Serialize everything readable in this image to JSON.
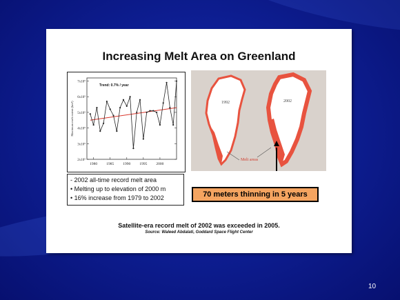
{
  "slide": {
    "title": "Increasing Melt Area on Greenland",
    "bullets": [
      "- 2002 all-time record melt area",
      "• Melting up to elevation of 2000 m",
      "• 16% increase from 1979 to 2002"
    ],
    "callout": "70 meters thinning in 5 years",
    "caption": "Satellite-era record melt of 2002 was exceeded in 2005.",
    "source": "Source: Waleed Abdalati, Goddard Space Flight Center",
    "page_number": "10"
  },
  "map": {
    "year_left": "1992",
    "year_right": "2002",
    "melt_label": "Melt areas",
    "melt_color": "#e8533f"
  },
  "chart_data": {
    "type": "line",
    "ylabel": "Maximum melt extent (km²)",
    "annotation": "Trend: 0.7% / year",
    "x_ticks": [
      "1980",
      "1985",
      "1990",
      "1995",
      "2000"
    ],
    "y_ticks": [
      "2x10⁵",
      "3x10⁵",
      "4x10⁵",
      "5x10⁵",
      "6x10⁵",
      "7x10⁵"
    ],
    "ylim": [
      2.0,
      7.2
    ],
    "xlim": [
      1978,
      2005
    ],
    "series": [
      {
        "x": [
          1979,
          1980,
          1981,
          1982,
          1983,
          1984,
          1985,
          1986,
          1987,
          1988,
          1989,
          1990,
          1991,
          1992,
          1993,
          1994,
          1995,
          1996,
          1997,
          1998,
          1999,
          2000,
          2001,
          2002,
          2003,
          2004,
          2005
        ],
        "values": [
          4.9,
          4.2,
          5.3,
          3.8,
          4.3,
          5.7,
          5.2,
          4.8,
          3.8,
          5.3,
          5.8,
          5.4,
          6.0,
          2.7,
          5.0,
          5.8,
          3.3,
          5.0,
          5.1,
          5.1,
          5.0,
          4.2,
          5.6,
          6.9,
          5.3,
          4.2,
          7.0
        ],
        "color": "#222222"
      }
    ],
    "trend": {
      "x": [
        1979,
        2005
      ],
      "y": [
        4.5,
        5.3
      ],
      "color": "#d9362b"
    },
    "grid": false
  }
}
